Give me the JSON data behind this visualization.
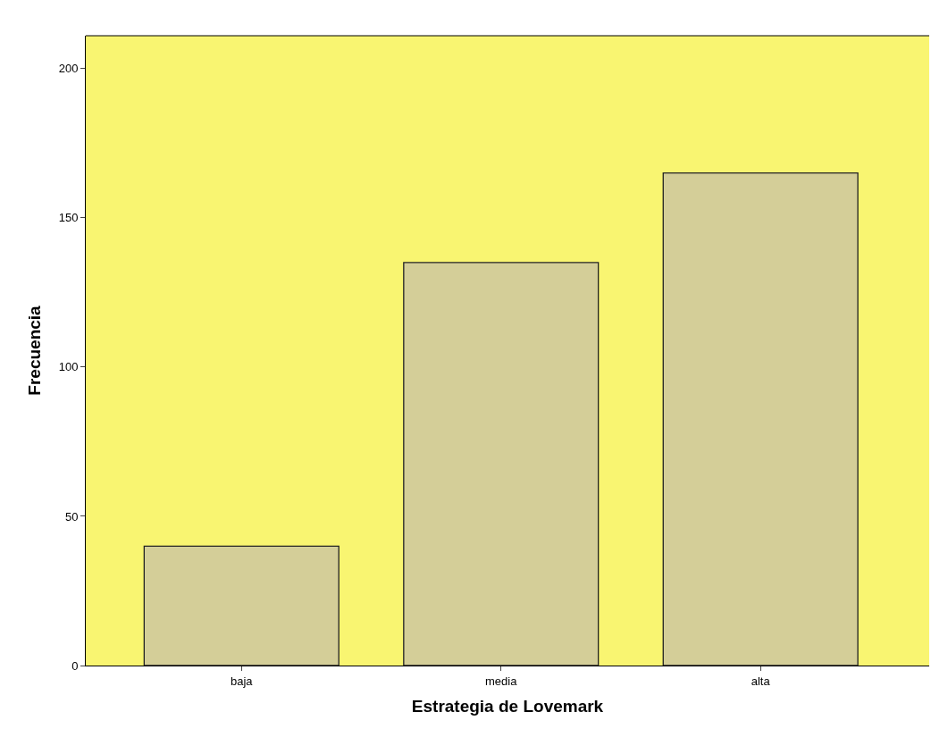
{
  "chart_data": {
    "type": "bar",
    "xlabel": "Estrategia de Lovemark",
    "ylabel": "Frecuencia",
    "categories": [
      "baja",
      "media",
      "alta"
    ],
    "values": [
      40,
      135,
      165
    ],
    "color": "#d4ce98",
    "ylim": [
      0,
      211
    ],
    "yticks": [
      0,
      50,
      100,
      150,
      200
    ],
    "grid": false,
    "legend": false
  }
}
